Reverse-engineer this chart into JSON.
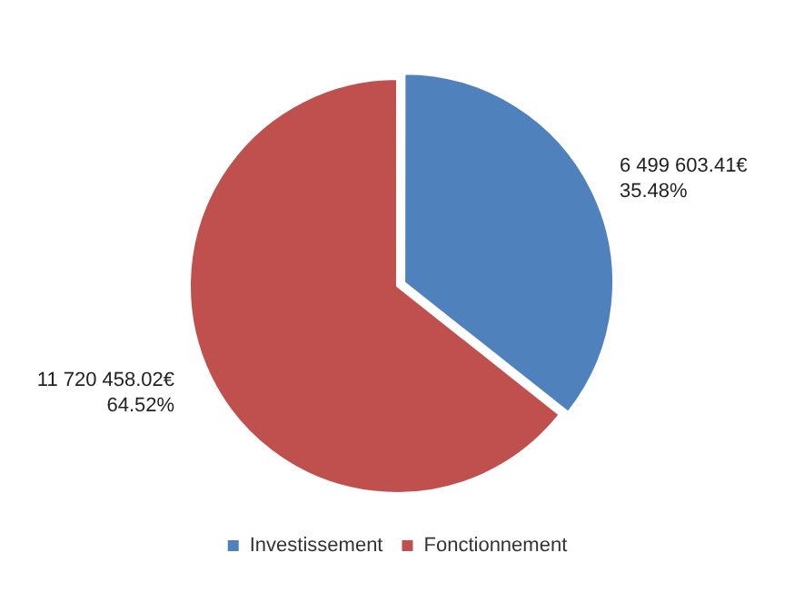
{
  "chart_data": {
    "type": "pie",
    "categories": [
      "Investissement",
      "Fonctionnement"
    ],
    "values": [
      6499603.41,
      11720458.02
    ],
    "colors": [
      "#4f81bd",
      "#c0504d"
    ],
    "value_labels": [
      "6 499 603.41€\n35.48%",
      "11 720 458.02€\n64.52%"
    ],
    "legend": "bottom"
  }
}
